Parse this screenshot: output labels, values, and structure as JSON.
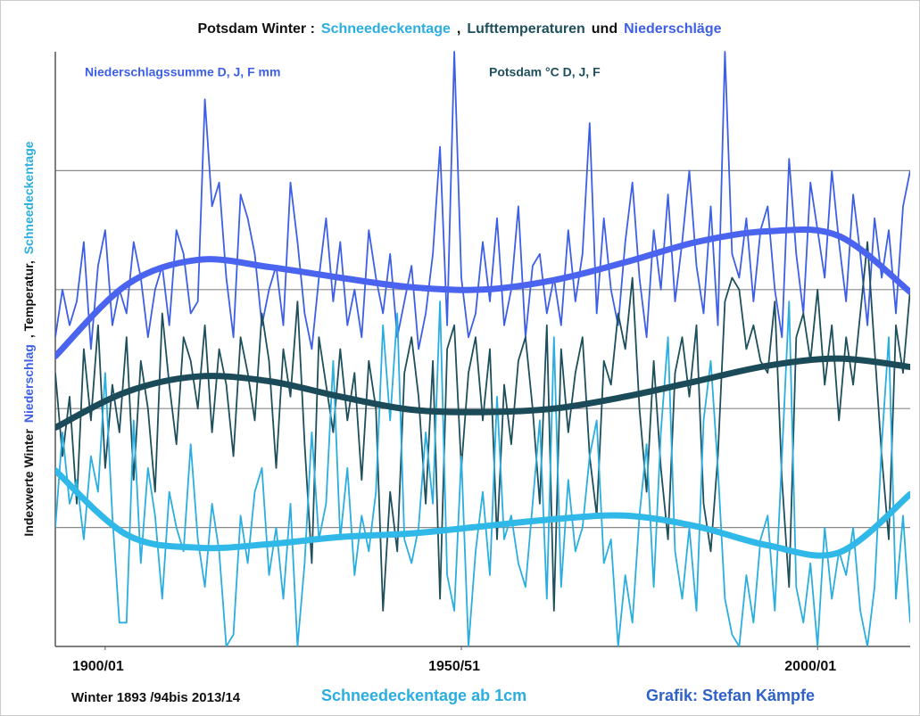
{
  "chart_data": {
    "type": "line",
    "title": [
      {
        "text": "Potsdam  Winter :",
        "color": "#111111"
      },
      {
        "text": "Schneedeckentage",
        "color": "#2aaee0"
      },
      {
        "text": ",",
        "color": "#111111"
      },
      {
        "text": "Lufttemperaturen",
        "color": "#1d4f5c"
      },
      {
        "text": "und",
        "color": "#111111"
      },
      {
        "text": "Niederschläge",
        "color": "#3d5fe6"
      }
    ],
    "annotations": [
      {
        "text": "Niederschlagssumme D, J, F mm",
        "color": "#3d5fe6"
      },
      {
        "text": "Potsdam  °C  D, J, F",
        "color": "#1d4f5c"
      }
    ],
    "y_label": [
      {
        "text": "Indexwerte Winter",
        "color": "#111111"
      },
      {
        "text": "Niederschlag",
        "color": "#3d5fe6"
      },
      {
        "text": ", Temperatur,",
        "color": "#111111"
      },
      {
        "text": "Schneedeckentage",
        "color": "#2aaee0"
      }
    ],
    "footer": [
      {
        "text": "Winter 1893 /94bis 2013/14",
        "color": "#111111"
      },
      {
        "text": "Schneedeckentage ab 1cm",
        "color": "#2aaee0"
      },
      {
        "text": "Grafik: Stefan Kämpfe",
        "color": "#2f62c8"
      }
    ],
    "x": [
      1893,
      1894,
      1895,
      1896,
      1897,
      1898,
      1899,
      1900,
      1901,
      1902,
      1903,
      1904,
      1905,
      1906,
      1907,
      1908,
      1909,
      1910,
      1911,
      1912,
      1913,
      1914,
      1915,
      1916,
      1917,
      1918,
      1919,
      1920,
      1921,
      1922,
      1923,
      1924,
      1925,
      1926,
      1927,
      1928,
      1929,
      1930,
      1931,
      1932,
      1933,
      1934,
      1935,
      1936,
      1937,
      1938,
      1939,
      1940,
      1941,
      1942,
      1943,
      1944,
      1945,
      1946,
      1947,
      1948,
      1949,
      1950,
      1951,
      1952,
      1953,
      1954,
      1955,
      1956,
      1957,
      1958,
      1959,
      1960,
      1961,
      1962,
      1963,
      1964,
      1965,
      1966,
      1967,
      1968,
      1969,
      1970,
      1971,
      1972,
      1973,
      1974,
      1975,
      1976,
      1977,
      1978,
      1979,
      1980,
      1981,
      1982,
      1983,
      1984,
      1985,
      1986,
      1987,
      1988,
      1989,
      1990,
      1991,
      1992,
      1993,
      1994,
      1995,
      1996,
      1997,
      1998,
      1999,
      2000,
      2001,
      2002,
      2003,
      2004,
      2005,
      2006,
      2007,
      2008,
      2009,
      2010,
      2011,
      2012,
      2013
    ],
    "xlim": [
      1893,
      2013
    ],
    "xticks": [
      {
        "value": 1900,
        "label": "1900/01"
      },
      {
        "value": 1950,
        "label": "1950/51"
      },
      {
        "value": 2000,
        "label": "2000/01"
      }
    ],
    "ylim": [
      0,
      5
    ],
    "yticks": [
      1,
      2,
      3,
      4
    ],
    "grid": true,
    "series": [
      {
        "color": "#3d5fe6",
        "values": [
          2.6,
          3.0,
          2.7,
          2.9,
          3.4,
          2.5,
          3.2,
          3.5,
          2.7,
          3.0,
          2.8,
          3.4,
          3.1,
          2.6,
          3.0,
          3.2,
          2.7,
          3.5,
          3.3,
          2.8,
          2.9,
          4.6,
          3.7,
          3.9,
          3.1,
          2.6,
          3.8,
          3.6,
          3.3,
          2.7,
          3.0,
          3.2,
          2.7,
          3.9,
          3.4,
          2.8,
          2.5,
          3.1,
          3.6,
          2.9,
          3.4,
          2.7,
          3.0,
          2.6,
          3.5,
          3.1,
          2.8,
          3.3,
          2.6,
          2.9,
          3.2,
          2.5,
          2.8,
          3.3,
          4.2,
          2.7,
          5.0,
          3.1,
          2.6,
          2.8,
          3.4,
          2.9,
          3.6,
          2.7,
          3.0,
          3.7,
          2.6,
          3.2,
          3.3,
          2.8,
          3.1,
          2.7,
          3.5,
          2.9,
          3.3,
          4.4,
          2.8,
          3.6,
          3.0,
          2.7,
          3.4,
          3.9,
          3.1,
          2.6,
          3.5,
          3.0,
          3.8,
          2.9,
          3.4,
          4.0,
          3.2,
          2.8,
          3.7,
          2.7,
          5.0,
          3.3,
          3.1,
          3.6,
          2.9,
          3.5,
          3.7,
          3.0,
          2.6,
          4.1,
          3.3,
          2.8,
          3.9,
          3.5,
          3.1,
          4.0,
          3.4,
          2.9,
          3.8,
          3.3,
          2.7,
          3.6,
          3.1,
          3.5,
          2.8,
          3.7,
          4.0
        ]
      },
      {
        "color": "#1d4f5c",
        "values": [
          2.3,
          1.6,
          2.1,
          1.2,
          2.5,
          1.9,
          2.7,
          1.5,
          2.2,
          1.8,
          2.6,
          1.4,
          2.4,
          2.0,
          1.3,
          2.8,
          2.2,
          1.7,
          2.6,
          2.4,
          2.0,
          2.7,
          1.8,
          2.5,
          2.2,
          1.6,
          2.6,
          2.3,
          1.9,
          2.8,
          2.4,
          1.5,
          2.5,
          2.1,
          2.9,
          1.7,
          0.7,
          2.6,
          2.2,
          1.8,
          2.5,
          1.9,
          2.3,
          1.4,
          2.4,
          2.0,
          0.3,
          1.3,
          0.8,
          2.3,
          2.6,
          2.1,
          1.2,
          2.4,
          0.4,
          2.5,
          2.7,
          1.5,
          2.3,
          2.6,
          1.9,
          2.5,
          0.9,
          2.2,
          1.7,
          2.4,
          2.6,
          2.0,
          1.2,
          2.7,
          0.3,
          2.5,
          1.8,
          2.3,
          2.6,
          1.6,
          1.1,
          2.4,
          2.2,
          2.8,
          2.5,
          3.1,
          2.0,
          1.3,
          2.4,
          1.5,
          0.9,
          2.3,
          2.6,
          2.1,
          2.7,
          1.2,
          0.8,
          1.6,
          2.9,
          3.1,
          3.0,
          2.5,
          2.7,
          2.4,
          2.3,
          2.9,
          1.4,
          0.5,
          2.6,
          2.8,
          2.4,
          3.0,
          2.2,
          2.7,
          1.9,
          2.6,
          2.2,
          2.8,
          3.4,
          2.5,
          1.6,
          0.9,
          2.7,
          2.3,
          3.0
        ]
      },
      {
        "color": "#2aaee0",
        "values": [
          1.0,
          1.8,
          1.2,
          1.4,
          0.9,
          1.6,
          1.3,
          2.3,
          1.1,
          0.2,
          0.2,
          1.9,
          0.7,
          1.5,
          1.1,
          0.4,
          1.3,
          1.0,
          0.8,
          1.7,
          0.9,
          0.5,
          1.2,
          0.8,
          0.0,
          0.1,
          1.1,
          0.7,
          1.3,
          1.5,
          0.6,
          1.0,
          0.4,
          1.2,
          0.0,
          0.7,
          1.8,
          0.9,
          1.2,
          2.4,
          0.9,
          1.5,
          0.6,
          1.1,
          0.8,
          1.3,
          2.7,
          1.9,
          2.8,
          0.9,
          0.7,
          1.0,
          1.8,
          1.2,
          2.9,
          0.6,
          0.3,
          1.6,
          0.0,
          0.8,
          1.3,
          0.6,
          2.1,
          0.9,
          1.1,
          0.7,
          0.5,
          1.2,
          1.9,
          0.4,
          2.6,
          0.5,
          1.4,
          0.8,
          1.0,
          1.6,
          1.9,
          0.7,
          0.9,
          0.0,
          0.6,
          0.2,
          1.1,
          1.7,
          0.5,
          1.8,
          2.6,
          0.8,
          0.4,
          1.0,
          0.3,
          1.9,
          2.4,
          1.5,
          0.4,
          0.1,
          0.0,
          0.6,
          0.2,
          0.9,
          1.1,
          0.3,
          1.6,
          2.9,
          0.5,
          0.2,
          0.7,
          0.0,
          1.0,
          0.4,
          0.8,
          0.6,
          1.0,
          0.3,
          0.0,
          0.5,
          1.7,
          2.6,
          0.4,
          1.1,
          0.2
        ]
      }
    ],
    "trends": [
      {
        "color": "#4a64f0",
        "x": [
          1893,
          1903,
          1913,
          1923,
          1933,
          1943,
          1953,
          1963,
          1973,
          1983,
          1993,
          2003,
          2013
        ],
        "values": [
          2.44,
          3.04,
          3.25,
          3.19,
          3.1,
          3.02,
          3.0,
          3.08,
          3.23,
          3.4,
          3.49,
          3.45,
          2.98
        ]
      },
      {
        "color": "#1b4a58",
        "x": [
          1893,
          1903,
          1913,
          1923,
          1933,
          1943,
          1953,
          1963,
          1973,
          1983,
          1993,
          2003,
          2013
        ],
        "values": [
          1.84,
          2.14,
          2.27,
          2.23,
          2.1,
          1.99,
          1.97,
          2.0,
          2.1,
          2.23,
          2.36,
          2.42,
          2.35
        ]
      },
      {
        "color": "#30b8e8",
        "x": [
          1893,
          1903,
          1913,
          1923,
          1933,
          1943,
          1953,
          1963,
          1973,
          1983,
          1993,
          2003,
          2013
        ],
        "values": [
          1.48,
          0.94,
          0.83,
          0.86,
          0.92,
          0.95,
          1.01,
          1.07,
          1.1,
          1.01,
          0.85,
          0.79,
          1.28
        ]
      }
    ]
  }
}
